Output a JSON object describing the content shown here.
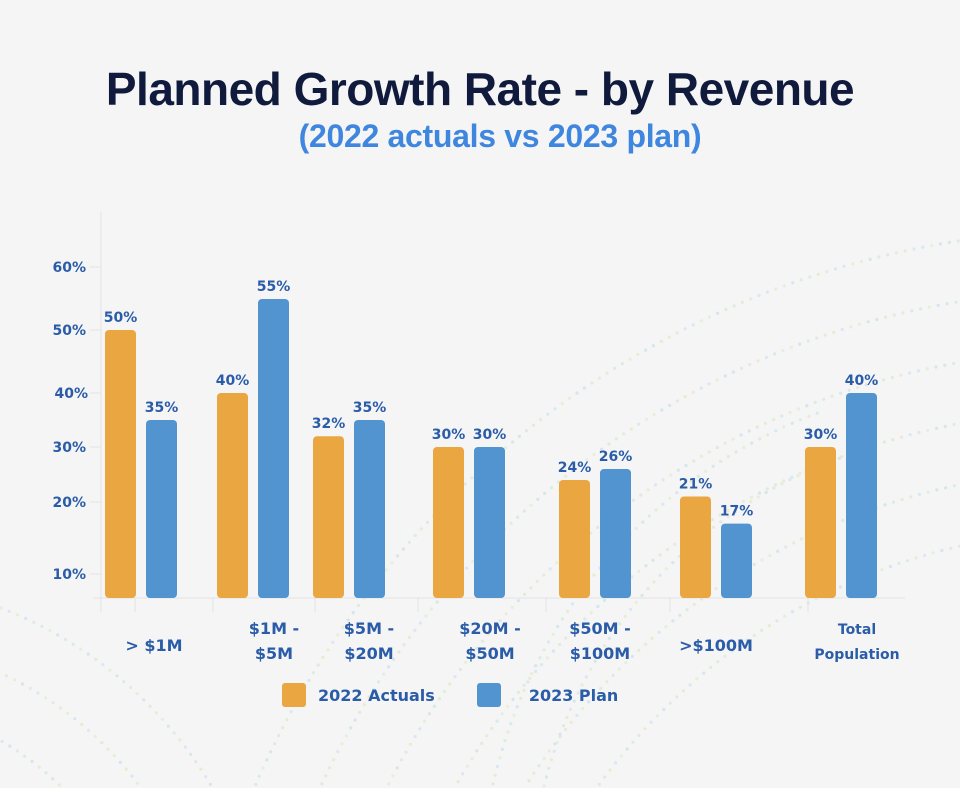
{
  "header": {
    "title": "Planned Growth Rate - by Revenue",
    "subtitle": "(2022 actuals vs 2023 plan)"
  },
  "colors": {
    "actuals": "#E9A641",
    "plan": "#5294D0",
    "label": "#2A5CA8",
    "title": "#101A3C",
    "subtitle": "#3F86DE",
    "axis": "#e2e2e2"
  },
  "chart_data": {
    "type": "bar",
    "title": "Planned Growth Rate - by Revenue",
    "subtitle": "(2022 actuals vs 2023 plan)",
    "xlabel": "",
    "ylabel": "",
    "categories": [
      [
        "> $1M"
      ],
      [
        "$1M -",
        "$5M"
      ],
      [
        "$5M -",
        "$20M"
      ],
      [
        "$20M -",
        "$50M"
      ],
      [
        "$50M -",
        "$100M"
      ],
      [
        ">$100M"
      ],
      [
        "Total",
        "Population"
      ]
    ],
    "series": [
      {
        "name": "2022 Actuals",
        "color": "#E9A641",
        "values": [
          50,
          40,
          32,
          30,
          24,
          21,
          30
        ],
        "labels": [
          "50%",
          "40%",
          "32%",
          "30%",
          "24%",
          "21%",
          "30%"
        ]
      },
      {
        "name": "2023 Plan",
        "color": "#5294D0",
        "values": [
          35,
          55,
          35,
          30,
          26,
          17,
          40
        ],
        "labels": [
          "35%",
          "55%",
          "35%",
          "30%",
          "26%",
          "17%",
          "40%"
        ]
      }
    ],
    "yticks": [
      10,
      20,
      30,
      40,
      50,
      60
    ],
    "ytick_labels": [
      "10%",
      "20%",
      "30%",
      "40%",
      "50%",
      "60%"
    ],
    "ylim": [
      0,
      65
    ],
    "grid": false,
    "legend": {
      "position": "bottom",
      "entries": [
        "2022 Actuals",
        "2023 Plan"
      ]
    }
  }
}
